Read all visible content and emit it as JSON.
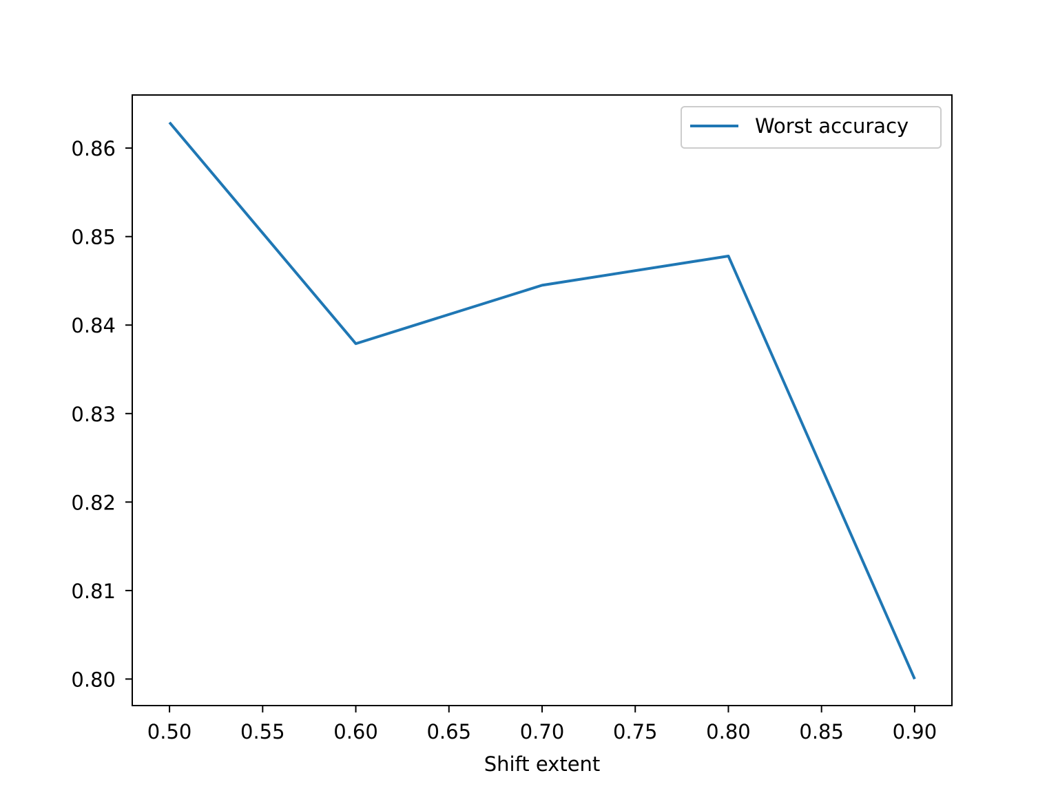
{
  "chart_data": {
    "type": "line",
    "title": "",
    "xlabel": "Shift extent",
    "ylabel": "",
    "xlim": [
      0.48,
      0.92
    ],
    "ylim": [
      0.797,
      0.866
    ],
    "xticks": [
      0.5,
      0.55,
      0.6,
      0.65,
      0.7,
      0.75,
      0.8,
      0.85,
      0.9
    ],
    "xtick_labels": [
      "0.50",
      "0.55",
      "0.60",
      "0.65",
      "0.70",
      "0.75",
      "0.80",
      "0.85",
      "0.90"
    ],
    "yticks": [
      0.8,
      0.81,
      0.82,
      0.83,
      0.84,
      0.85,
      0.86
    ],
    "ytick_labels": [
      "0.80",
      "0.81",
      "0.82",
      "0.83",
      "0.84",
      "0.85",
      "0.86"
    ],
    "grid": false,
    "legend_position": "top-right",
    "series": [
      {
        "name": "Worst accuracy",
        "color": "#1f77b4",
        "x": [
          0.5,
          0.6,
          0.7,
          0.8,
          0.9
        ],
        "y": [
          0.8629,
          0.8379,
          0.8445,
          0.8478,
          0.8
        ]
      }
    ]
  }
}
